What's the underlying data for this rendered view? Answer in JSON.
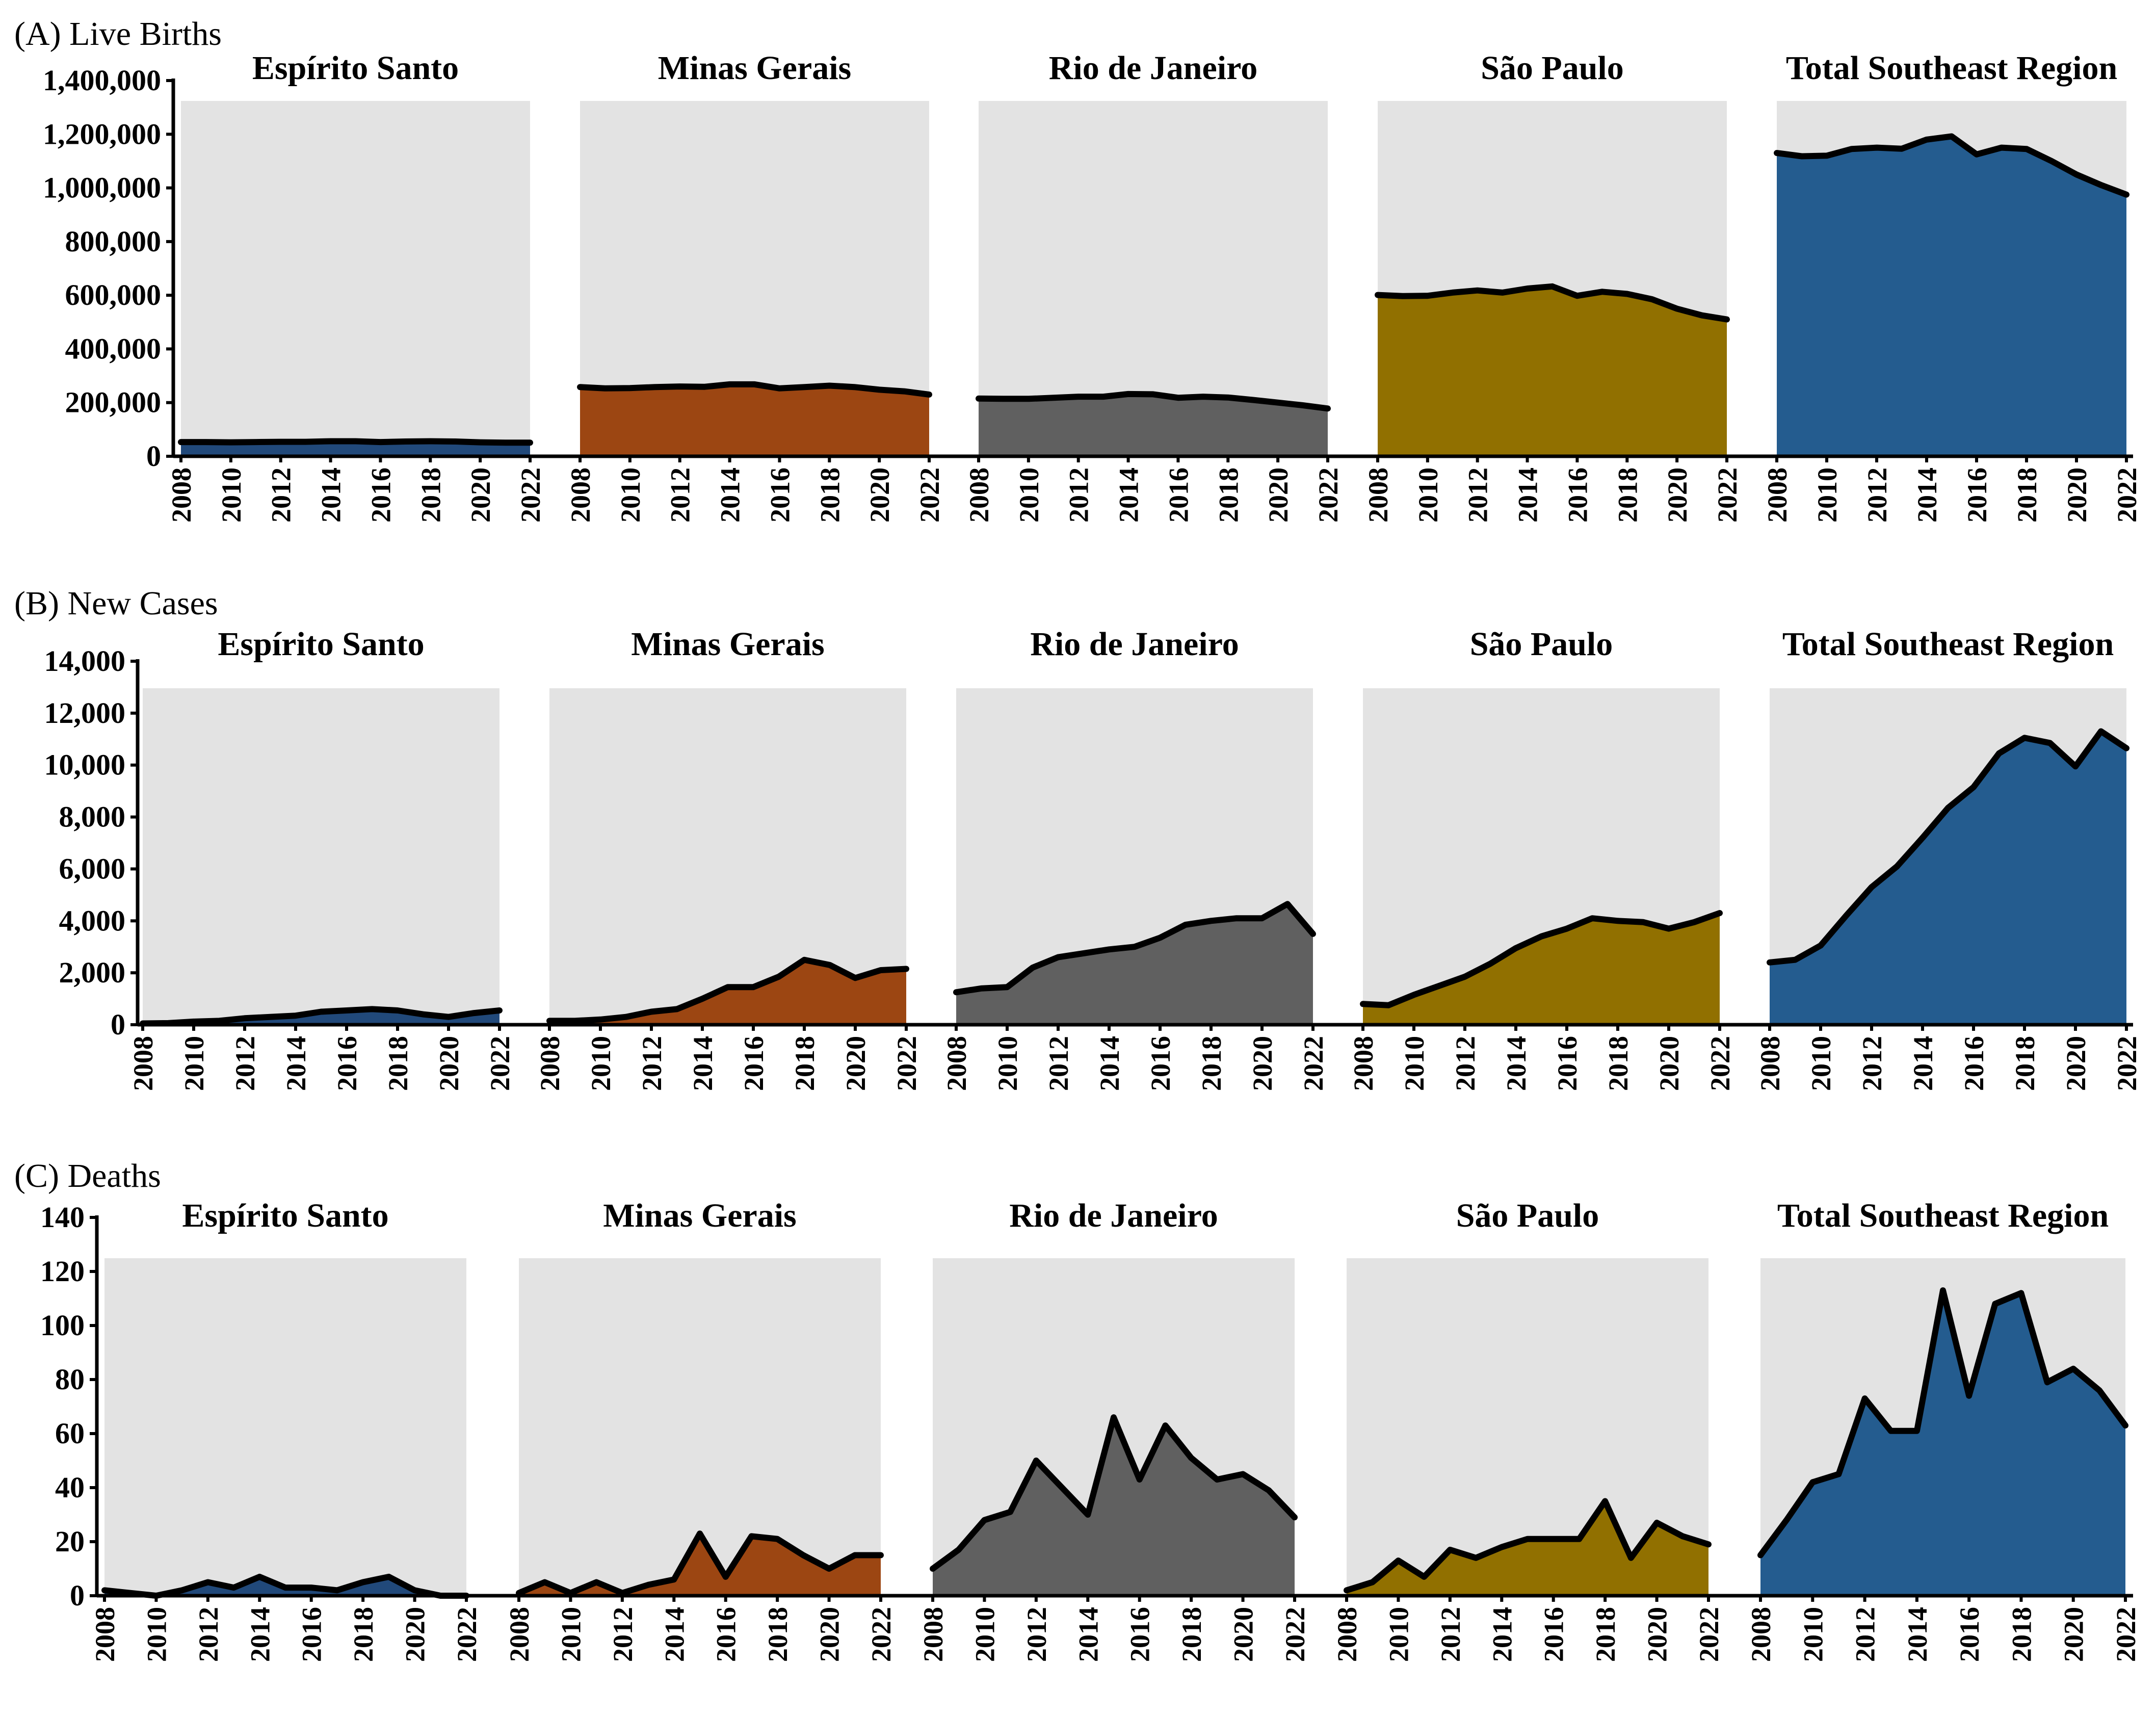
{
  "chart_data": [
    {
      "type": "area",
      "title": "(A) Live Births",
      "x": [
        2008,
        2009,
        2010,
        2011,
        2012,
        2013,
        2014,
        2015,
        2016,
        2017,
        2018,
        2019,
        2020,
        2021,
        2022
      ],
      "x_ticks": [
        "2008",
        "2010",
        "2012",
        "2014",
        "2016",
        "2018",
        "2020",
        "2022"
      ],
      "ylim": [
        0,
        1400000
      ],
      "y_ticks": [
        "0",
        "200,000",
        "400,000",
        "600,000",
        "800,000",
        "1,000,000",
        "1,200,000",
        "1,400,000"
      ],
      "y_tick_values": [
        0,
        200000,
        400000,
        600000,
        800000,
        1000000,
        1200000,
        1400000
      ],
      "series": [
        {
          "name": "Espírito Santo",
          "values": [
            53000,
            53000,
            52000,
            53000,
            54000,
            54000,
            56000,
            56000,
            53000,
            55000,
            56000,
            55000,
            52000,
            51000,
            51000
          ]
        },
        {
          "name": "Minas Gerais",
          "values": [
            258000,
            253000,
            254000,
            258000,
            260000,
            259000,
            268000,
            268000,
            253000,
            258000,
            263000,
            258000,
            248000,
            242000,
            230000
          ]
        },
        {
          "name": "Rio de Janeiro",
          "values": [
            215000,
            214000,
            214000,
            218000,
            222000,
            222000,
            232000,
            231000,
            218000,
            222000,
            219000,
            210000,
            200000,
            190000,
            178000
          ]
        },
        {
          "name": "São Paulo",
          "values": [
            601000,
            597000,
            598000,
            610000,
            618000,
            610000,
            625000,
            633000,
            598000,
            613000,
            605000,
            585000,
            550000,
            525000,
            510000
          ]
        },
        {
          "name": "Total Southeast Region",
          "values": [
            1130000,
            1118000,
            1120000,
            1145000,
            1150000,
            1146000,
            1180000,
            1192000,
            1125000,
            1150000,
            1145000,
            1100000,
            1050000,
            1010000,
            975000
          ]
        }
      ]
    },
    {
      "type": "area",
      "title": "(B) New Cases",
      "x": [
        2008,
        2009,
        2010,
        2011,
        2012,
        2013,
        2014,
        2015,
        2016,
        2017,
        2018,
        2019,
        2020,
        2021,
        2022
      ],
      "x_ticks": [
        "2008",
        "2010",
        "2012",
        "2014",
        "2016",
        "2018",
        "2020",
        "2022"
      ],
      "ylim": [
        0,
        14000
      ],
      "y_ticks": [
        "0",
        "2,000",
        "4,000",
        "6,000",
        "8,000",
        "10,000",
        "12,000",
        "14,000"
      ],
      "y_tick_values": [
        0,
        2000,
        4000,
        6000,
        8000,
        10000,
        12000,
        14000
      ],
      "series": [
        {
          "name": "Espírito Santo",
          "values": [
            50,
            60,
            120,
            150,
            250,
            300,
            350,
            500,
            550,
            600,
            550,
            400,
            300,
            450,
            550
          ]
        },
        {
          "name": "Minas Gerais",
          "values": [
            150,
            150,
            200,
            300,
            500,
            600,
            1000,
            1450,
            1450,
            1850,
            2500,
            2300,
            1800,
            2100,
            2150
          ]
        },
        {
          "name": "Rio de Janeiro",
          "values": [
            1250,
            1400,
            1450,
            2200,
            2600,
            2750,
            2900,
            3000,
            3350,
            3850,
            4000,
            4100,
            4100,
            4650,
            3500
          ]
        },
        {
          "name": "São Paulo",
          "values": [
            800,
            750,
            1150,
            1500,
            1850,
            2350,
            2950,
            3400,
            3700,
            4100,
            4000,
            3950,
            3700,
            3950,
            4300
          ]
        },
        {
          "name": "Total Southeast Region",
          "values": [
            2400,
            2500,
            3050,
            4200,
            5300,
            6100,
            7200,
            8350,
            9150,
            10450,
            11050,
            10850,
            9950,
            11300,
            10650
          ]
        }
      ]
    },
    {
      "type": "area",
      "title": "(C) Deaths",
      "x": [
        2008,
        2009,
        2010,
        2011,
        2012,
        2013,
        2014,
        2015,
        2016,
        2017,
        2018,
        2019,
        2020,
        2021,
        2022
      ],
      "x_ticks": [
        "2008",
        "2010",
        "2012",
        "2014",
        "2016",
        "2018",
        "2020",
        "2022"
      ],
      "ylim": [
        0,
        140
      ],
      "y_ticks": [
        "0",
        "20",
        "40",
        "60",
        "80",
        "100",
        "120",
        "140"
      ],
      "y_tick_values": [
        0,
        20,
        40,
        60,
        80,
        100,
        120,
        140
      ],
      "series": [
        {
          "name": "Espírito Santo",
          "values": [
            2,
            1,
            0,
            2,
            5,
            3,
            7,
            3,
            3,
            2,
            5,
            7,
            2,
            0,
            0
          ]
        },
        {
          "name": "Minas Gerais",
          "values": [
            1,
            5,
            1,
            5,
            1,
            4,
            6,
            23,
            7,
            22,
            21,
            15,
            10,
            15,
            15
          ]
        },
        {
          "name": "Rio de Janeiro",
          "values": [
            10,
            17,
            28,
            31,
            50,
            40,
            30,
            66,
            43,
            63,
            51,
            43,
            45,
            39,
            29
          ]
        },
        {
          "name": "São Paulo",
          "values": [
            2,
            5,
            13,
            7,
            17,
            14,
            18,
            21,
            21,
            21,
            35,
            14,
            27,
            22,
            19
          ]
        },
        {
          "name": "Total Southeast Region",
          "values": [
            15,
            28,
            42,
            45,
            73,
            61,
            61,
            113,
            74,
            108,
            112,
            79,
            84,
            76,
            63
          ]
        }
      ]
    }
  ],
  "colors": {
    "series": [
      "#21497a",
      "#9c4612",
      "#606060",
      "#917000",
      "#245c8f"
    ],
    "plot_bg": "#e3e3e3",
    "line": "#000000"
  }
}
